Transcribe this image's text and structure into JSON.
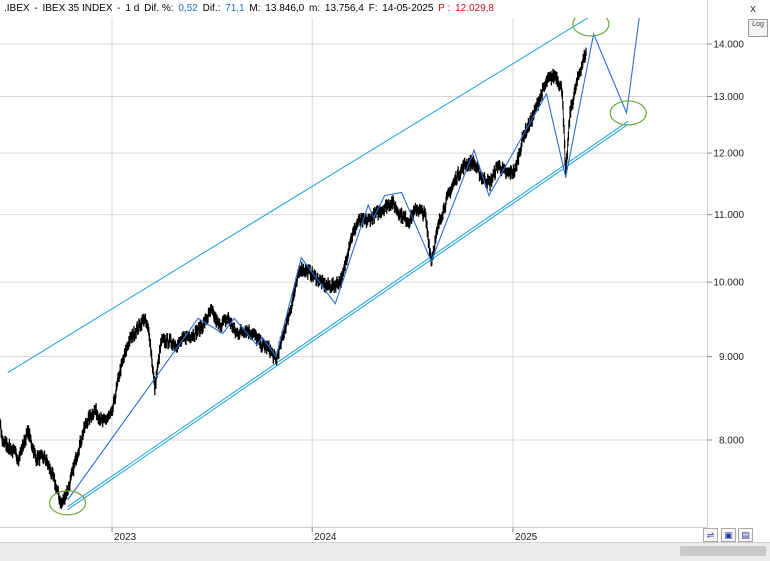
{
  "header": {
    "symbol": ".IBEX",
    "separator": "-",
    "name": "IBEX 35 INDEX",
    "sep2": "-",
    "interval": "1 d",
    "dif_pct_label": "Dif. %:",
    "dif_pct_value": "0,52",
    "dif_label": "Dif.:",
    "dif_value": "71,1",
    "max_label": "M:",
    "max_value": "13.846,0",
    "min_label": "m:",
    "min_value": "13.756,4",
    "date_label": "F:",
    "date_value": "14-05-2025",
    "p_label": "P :",
    "p_value": "12.029,8"
  },
  "controls": {
    "close": "x",
    "log": "Log"
  },
  "colors": {
    "price": "#000000",
    "channel": "#1aa0e0",
    "zigzag": "#2a6fd8",
    "circle": "#6aaa3a",
    "grid": "#d8d8d8"
  },
  "chart_data": {
    "type": "line",
    "title": "IBEX 35 INDEX",
    "scale": "log",
    "ylim": [
      7200,
      14700
    ],
    "y_ticks": [
      "14.000",
      "13.000",
      "12.000",
      "11.000",
      "10.000",
      "9.000",
      "8.000"
    ],
    "x_ticks": [
      "2023",
      "2024",
      "2025"
    ],
    "series": [
      {
        "style": "daily price",
        "points": [
          [
            "2022-04-01",
            8400
          ],
          [
            "2022-04-15",
            8200
          ],
          [
            "2022-05-01",
            7900
          ],
          [
            "2022-05-15",
            8200
          ],
          [
            "2022-06-01",
            8600
          ],
          [
            "2022-06-15",
            8000
          ],
          [
            "2022-07-01",
            7900
          ],
          [
            "2022-07-15",
            7800
          ],
          [
            "2022-08-01",
            8100
          ],
          [
            "2022-08-15",
            7800
          ],
          [
            "2022-09-01",
            7800
          ],
          [
            "2022-09-15",
            7600
          ],
          [
            "2022-10-01",
            7300
          ],
          [
            "2022-10-15",
            7500
          ],
          [
            "2022-11-01",
            7900
          ],
          [
            "2022-11-15",
            8200
          ],
          [
            "2022-12-01",
            8350
          ],
          [
            "2022-12-15",
            8200
          ],
          [
            "2023-01-01",
            8300
          ],
          [
            "2023-01-15",
            8800
          ],
          [
            "2023-02-01",
            9200
          ],
          [
            "2023-02-15",
            9350
          ],
          [
            "2023-03-01",
            9500
          ],
          [
            "2023-03-10",
            9300
          ],
          [
            "2023-03-20",
            8600
          ],
          [
            "2023-04-01",
            9200
          ],
          [
            "2023-04-15",
            9200
          ],
          [
            "2023-05-01",
            9150
          ],
          [
            "2023-05-15",
            9250
          ],
          [
            "2023-06-01",
            9300
          ],
          [
            "2023-06-15",
            9400
          ],
          [
            "2023-07-01",
            9600
          ],
          [
            "2023-07-15",
            9400
          ],
          [
            "2023-08-01",
            9500
          ],
          [
            "2023-08-15",
            9300
          ],
          [
            "2023-09-01",
            9350
          ],
          [
            "2023-09-15",
            9300
          ],
          [
            "2023-10-01",
            9150
          ],
          [
            "2023-10-15",
            9100
          ],
          [
            "2023-10-27",
            8950
          ],
          [
            "2023-11-10",
            9300
          ],
          [
            "2023-11-25",
            9700
          ],
          [
            "2023-12-10",
            10200
          ],
          [
            "2023-12-25",
            10150
          ],
          [
            "2024-01-10",
            10050
          ],
          [
            "2024-01-25",
            9950
          ],
          [
            "2024-02-10",
            9950
          ],
          [
            "2024-02-25",
            10050
          ],
          [
            "2024-03-10",
            10600
          ],
          [
            "2024-03-25",
            10900
          ],
          [
            "2024-04-10",
            10900
          ],
          [
            "2024-04-25",
            11000
          ],
          [
            "2024-05-10",
            11100
          ],
          [
            "2024-05-25",
            11200
          ],
          [
            "2024-06-10",
            11000
          ],
          [
            "2024-06-25",
            10900
          ],
          [
            "2024-07-10",
            11100
          ],
          [
            "2024-07-25",
            11000
          ],
          [
            "2024-08-05",
            10300
          ],
          [
            "2024-08-20",
            10900
          ],
          [
            "2024-09-05",
            11300
          ],
          [
            "2024-09-20",
            11600
          ],
          [
            "2024-10-05",
            11800
          ],
          [
            "2024-10-20",
            11850
          ],
          [
            "2024-11-05",
            11600
          ],
          [
            "2024-11-20",
            11500
          ],
          [
            "2024-12-05",
            11800
          ],
          [
            "2024-12-20",
            11650
          ],
          [
            "2025-01-05",
            11700
          ],
          [
            "2025-01-20",
            12300
          ],
          [
            "2025-02-05",
            12600
          ],
          [
            "2025-02-20",
            13000
          ],
          [
            "2025-03-05",
            13300
          ],
          [
            "2025-03-20",
            13400
          ],
          [
            "2025-04-01",
            13100
          ],
          [
            "2025-04-07",
            11600
          ],
          [
            "2025-04-15",
            12700
          ],
          [
            "2025-05-01",
            13400
          ],
          [
            "2025-05-14",
            13846
          ]
        ]
      },
      {
        "style": "zigzag wave count",
        "points": [
          [
            "2022-10-12",
            7350
          ],
          [
            "2023-06-07",
            9500
          ],
          [
            "2023-07-22",
            9300
          ],
          [
            "2023-08-12",
            9500
          ],
          [
            "2023-09-22",
            9150
          ],
          [
            "2023-10-02",
            9250
          ],
          [
            "2023-10-27",
            9000
          ],
          [
            "2023-12-12",
            10350
          ],
          [
            "2024-02-12",
            9700
          ],
          [
            "2024-04-12",
            11150
          ],
          [
            "2024-04-22",
            10950
          ],
          [
            "2024-05-12",
            11300
          ],
          [
            "2024-06-12",
            11350
          ],
          [
            "2024-08-05",
            10300
          ],
          [
            "2024-10-22",
            12050
          ],
          [
            "2024-11-18",
            11300
          ],
          [
            "2025-03-03",
            13050
          ],
          [
            "2025-04-07",
            11600
          ],
          [
            "2025-05-28",
            14200
          ],
          [
            "2025-07-27",
            12700
          ],
          [
            "2025-08-20",
            14600
          ]
        ]
      },
      {
        "style": "channel upper line",
        "points": [
          [
            "2022-06-25",
            8800
          ],
          [
            "2025-05-28",
            14600
          ]
        ]
      },
      {
        "style": "channel lower line",
        "points": [
          [
            "2022-10-12",
            7250
          ],
          [
            "2025-07-30",
            12500
          ]
        ]
      }
    ],
    "annotations": [
      {
        "type": "circle",
        "date": "2022-10-12",
        "value": 7320
      },
      {
        "type": "circle",
        "date": "2025-05-23",
        "value": 14400
      },
      {
        "type": "circle",
        "date": "2025-07-30",
        "value": 12700
      }
    ]
  }
}
